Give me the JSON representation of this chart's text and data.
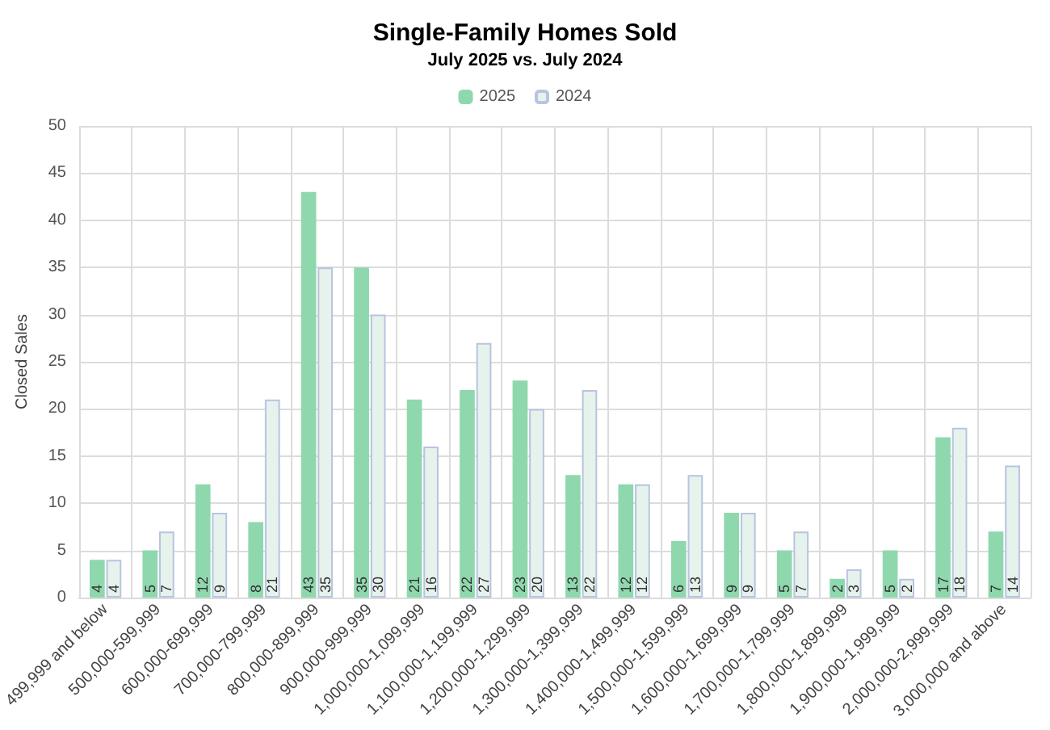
{
  "chart_data": {
    "type": "bar",
    "title": "Single-Family Homes Sold",
    "subtitle": "July 2025 vs. July 2024",
    "ylabel": "Closed Sales",
    "categories": [
      "499,999 and below",
      "500,000-599,999",
      "600,000-699,999",
      "700,000-799,999",
      "800,000-899,999",
      "900,000-999,999",
      "1,000,000-1,099,999",
      "1,100,000-1,199,999",
      "1,200,000-1,299,999",
      "1,300,000-1,399,999",
      "1,400,000-1,499,999",
      "1,500,000-1,599,999",
      "1,600,000-1,699,999",
      "1,700,000-1,799,999",
      "1,800,000-1,899,999",
      "1,900,000-1,999,999",
      "2,000,000-2,999,999",
      "3,000,000 and above"
    ],
    "series": [
      {
        "name": "2025",
        "color": "#8fd8ae",
        "values": [
          4,
          5,
          12,
          8,
          43,
          35,
          21,
          22,
          23,
          13,
          12,
          6,
          9,
          5,
          2,
          5,
          17,
          7
        ]
      },
      {
        "name": "2024",
        "color": "#e6f2ec",
        "values": [
          4,
          7,
          9,
          21,
          35,
          30,
          16,
          27,
          20,
          22,
          12,
          13,
          9,
          7,
          3,
          2,
          18,
          14
        ]
      }
    ],
    "ylim": [
      0,
      50
    ],
    "yticks": [
      0,
      5,
      10,
      15,
      20,
      25,
      30,
      35,
      40,
      45,
      50
    ],
    "grid": true,
    "legend": "top",
    "data_labels": true
  }
}
